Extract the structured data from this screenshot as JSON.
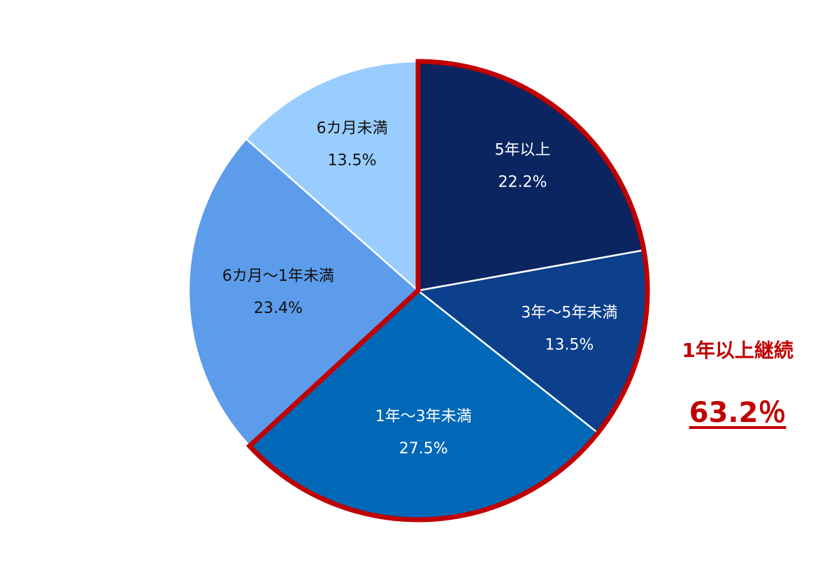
{
  "chart_data": {
    "type": "pie",
    "start_angle": "12 o'clock",
    "direction": "clockwise",
    "slices": [
      {
        "label": "5年以上",
        "value": 22.2,
        "value_label": "22.2%",
        "color": "#0b2560",
        "text_color": "#ffffff",
        "highlighted": true
      },
      {
        "label": "3年～5年未満",
        "value": 13.5,
        "value_label": "13.5%",
        "color": "#0c3f8c",
        "text_color": "#ffffff",
        "highlighted": true
      },
      {
        "label": "1年～3年未満",
        "value": 27.5,
        "value_label": "27.5%",
        "color": "#0068b7",
        "text_color": "#ffffff",
        "highlighted": true
      },
      {
        "label": "6カ月～1年未満",
        "value": 23.4,
        "value_label": "23.4%",
        "color": "#5c9ceb",
        "text_color": "#111111",
        "highlighted": false
      },
      {
        "label": "6カ月未満",
        "value": 13.5,
        "value_label": "13.5%",
        "color": "#99cdff",
        "text_color": "#111111",
        "highlighted": false
      }
    ],
    "highlight_color": "#c00000",
    "annotation": {
      "title": "1年以上継続",
      "value": "63.2％"
    }
  }
}
